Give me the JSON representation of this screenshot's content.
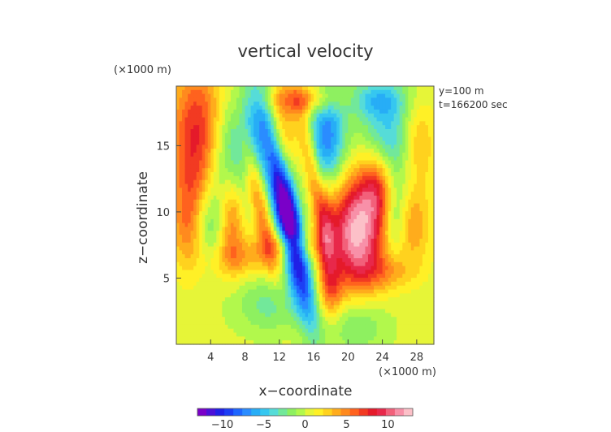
{
  "chart_data": {
    "type": "heatmap",
    "title": "vertical velocity",
    "xlabel": "x−coordinate",
    "ylabel": "z−coordinate",
    "x_unit": "(×1000 m)",
    "y_unit": "(×1000 m)",
    "annotations": [
      "y=100 m",
      "t=166200 sec"
    ],
    "xlim": [
      0,
      30
    ],
    "ylim": [
      0,
      19.5
    ],
    "x_ticks": [
      4,
      8,
      12,
      16,
      20,
      24,
      28
    ],
    "y_ticks": [
      5,
      10,
      15
    ],
    "colorbar": {
      "ticks": [
        -10,
        -5,
        0,
        5,
        10
      ],
      "range": [
        -13,
        13
      ],
      "colors": [
        "#7a00c8",
        "#4b10d8",
        "#2020e6",
        "#1c3ef4",
        "#1e66ff",
        "#2a8cff",
        "#27adf6",
        "#36c7f0",
        "#56dcd8",
        "#72e89a",
        "#8ef060",
        "#b2f84c",
        "#e6f538",
        "#fff026",
        "#ffd21e",
        "#ffac1c",
        "#ff8a1e",
        "#ff621e",
        "#f23a22",
        "#e51a2a",
        "#e8284a",
        "#f2607a",
        "#f890a8",
        "#fcc0c8"
      ]
    },
    "features": [
      {
        "x": 2.5,
        "z": 15.5,
        "w": 8.0,
        "sx": 2.2,
        "sz": 4.0
      },
      {
        "x": 1.5,
        "z": 9.0,
        "w": 4.0,
        "sx": 1.5,
        "sz": 2.5
      },
      {
        "x": 5.5,
        "z": 13.5,
        "w": -4.0,
        "sx": 1.8,
        "sz": 3.0
      },
      {
        "x": 3.5,
        "z": 9.0,
        "w": -4.0,
        "sx": 1.2,
        "sz": 2.0
      },
      {
        "x": 6.5,
        "z": 9.5,
        "w": 5.0,
        "sx": 1.0,
        "sz": 2.5
      },
      {
        "x": 9.0,
        "z": 16.0,
        "w": -5.0,
        "sx": 2.0,
        "sz": 3.0
      },
      {
        "x": 12.0,
        "z": 15.5,
        "w": 5.0,
        "sx": 1.3,
        "sz": 2.5
      },
      {
        "x": 8.0,
        "z": 6.5,
        "w": 3.0,
        "sx": 3.0,
        "sz": 1.0
      },
      {
        "x": 13.0,
        "z": 7.5,
        "w": 4.0,
        "sx": 2.5,
        "sz": 0.9
      },
      {
        "x": 17.5,
        "z": 15.5,
        "w": -8.0,
        "sx": 1.5,
        "sz": 3.0
      },
      {
        "x": 15.0,
        "z": 18.5,
        "w": 5.0,
        "sx": 3.0,
        "sz": 0.8
      },
      {
        "x": 21.0,
        "z": 8.5,
        "w": 12.0,
        "sx": 2.3,
        "sz": 3.0
      },
      {
        "x": 23.5,
        "z": 12.0,
        "w": 7.0,
        "sx": 1.5,
        "sz": 2.0
      },
      {
        "x": 17.5,
        "z": 8.5,
        "w": 4.0,
        "sx": 0.8,
        "sz": 3.0
      },
      {
        "x": 25.0,
        "z": 15.0,
        "w": -6.0,
        "sx": 2.5,
        "sz": 3.0
      },
      {
        "x": 23.0,
        "z": 18.5,
        "w": -4.0,
        "sx": 2.5,
        "sz": 1.0
      },
      {
        "x": 28.0,
        "z": 15.0,
        "w": 5.0,
        "sx": 1.5,
        "sz": 2.5
      },
      {
        "x": 27.5,
        "z": 9.0,
        "w": 4.0,
        "sx": 1.5,
        "sz": 2.0
      },
      {
        "x": 25.5,
        "z": 9.5,
        "w": -4.0,
        "sx": 1.0,
        "sz": 2.0
      },
      {
        "x": 18.0,
        "z": 4.0,
        "w": 4.0,
        "sx": 1.0,
        "sz": 1.5
      },
      {
        "x": 11.0,
        "z": 3.0,
        "w": -3.0,
        "sx": 3.0,
        "sz": 1.5
      },
      {
        "x": 21.0,
        "z": 1.5,
        "w": -3.0,
        "sx": 2.5,
        "sz": 1.5
      },
      {
        "x": 24.5,
        "z": 5.5,
        "w": 3.0,
        "sx": 2.5,
        "sz": 1.0
      }
    ],
    "bands": [
      {
        "x0": 13.0,
        "z0": 9.5,
        "dx": 0.34,
        "dz": -1.0,
        "w": -16.0,
        "sa": 5.0,
        "sc": 1.0
      },
      {
        "x0": 9.5,
        "z0": 11.0,
        "dx": 0.34,
        "dz": -1.0,
        "w": 5.0,
        "sa": 4.0,
        "sc": 0.7
      },
      {
        "x0": 16.0,
        "z0": 12.5,
        "dx": 0.3,
        "dz": -1.0,
        "w": 5.0,
        "sa": 4.0,
        "sc": 0.7
      }
    ]
  }
}
